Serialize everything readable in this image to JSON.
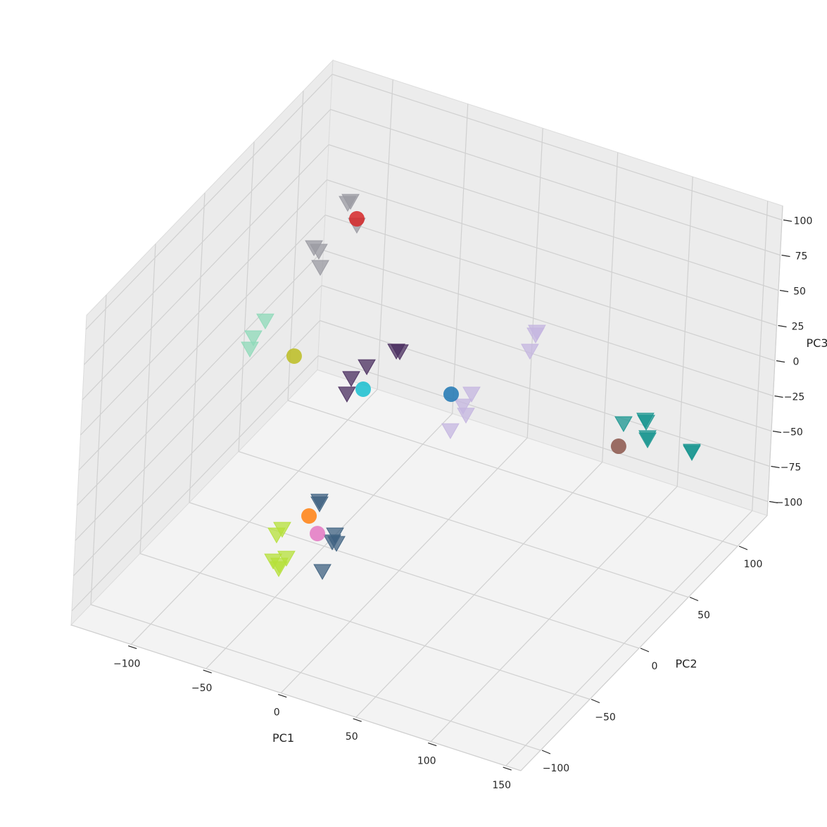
{
  "chart_data": {
    "type": "scatter3d",
    "xlabel": "PC1",
    "ylabel": "PC2",
    "zlabel": "PC3",
    "xlim": [
      -140,
      160
    ],
    "ylim": [
      -120,
      130
    ],
    "zlim": [
      -110,
      110
    ],
    "xticks": [
      {
        "value": -100,
        "label": "−100"
      },
      {
        "value": -50,
        "label": "−50"
      },
      0,
      50,
      100,
      150
    ],
    "yticks": [
      {
        "value": -100,
        "label": "−100"
      },
      {
        "value": -50,
        "label": "−50"
      },
      0,
      50,
      100
    ],
    "zticks": [
      {
        "value": -100,
        "label": "−100"
      },
      {
        "value": -75,
        "label": "−75"
      },
      {
        "value": -50,
        "label": "−50"
      },
      {
        "value": -25,
        "label": "−25"
      },
      0,
      25,
      50,
      75,
      100
    ],
    "grid": true,
    "series": [
      {
        "color": "#9a9aa2",
        "marker": "v",
        "x": [
          -68.6,
          -70.4,
          -63.7,
          -91.1,
          -87.8,
          -86.3
        ],
        "y": [
          40,
          40,
          40,
          40,
          40,
          40
        ],
        "z": [
          99.6,
          97.5,
          84.3,
          58.9,
          57.5,
          46.5
        ]
      },
      {
        "color": "#8ed9b8",
        "marker": "v",
        "x": [
          -96.1,
          -103.4,
          -105.3
        ],
        "y": [
          0,
          0,
          0
        ],
        "z": [
          34.1,
          19.6,
          11.0
        ]
      },
      {
        "color": "#4a2d5f",
        "marker": "v",
        "x": [
          -27.5,
          -25.2,
          -46.4,
          -56.2,
          -58.5
        ],
        "y": [
          30,
          30,
          30,
          30,
          30
        ],
        "z": [
          14.6,
          14.9,
          -3.0,
          -14.8,
          -26.6
        ]
      },
      {
        "color": "#c4b5e0",
        "marker": "v",
        "x": [
          45.8,
          45.0,
          41.8,
          4.9,
          -0.3,
          1.9,
          -7.8
        ],
        "y": [
          60,
          60,
          60,
          60,
          60,
          60,
          60
        ],
        "z": [
          31.6,
          29.3,
          16.7,
          -26.5,
          -36.8,
          -42.5,
          -56.9
        ]
      },
      {
        "color": "#1a9690",
        "marker": "v",
        "x": [
          81.1,
          95.3,
          95.9,
          97.3,
          97.4,
          126.8,
          126.9
        ],
        "y": [
          100,
          100,
          100,
          100,
          100,
          100,
          100
        ],
        "z": [
          -50.2,
          -42.8,
          -44.1,
          -54.6,
          -56.1,
          -54.0,
          -54.9
        ]
      },
      {
        "color": "#3d6080",
        "marker": "v",
        "x": [
          -17.8,
          -17.7,
          -6.5,
          -8.1,
          -5.3,
          -13.6
        ],
        "y": [
          -60,
          -60,
          -60,
          -60,
          -60,
          -60
        ],
        "z": [
          -23.4,
          -25.3,
          -43.5,
          -49.0,
          -49.1,
          -71.9
        ]
      },
      {
        "color": "#b5e03a",
        "marker": "v",
        "x": [
          -29.1,
          -32.6,
          -34.0,
          -25.4,
          -29.8,
          -30.1
        ],
        "y": [
          -80,
          -80,
          -80,
          -80,
          -80,
          -80
        ],
        "z": [
          -32.8,
          -38.0,
          -57.0,
          -52.0,
          -58.5,
          -61.1
        ]
      },
      {
        "color": "#d62728",
        "marker": "o",
        "x": [
          -63.9
        ],
        "y": [
          40
        ],
        "z": [
          88.8
        ]
      },
      {
        "color": "#bcbd22",
        "marker": "o",
        "x": [
          -76.0
        ],
        "y": [
          0
        ],
        "z": [
          16.1
        ]
      },
      {
        "color": "#17becf",
        "marker": "o",
        "x": [
          -48.0
        ],
        "y": [
          30
        ],
        "z": [
          -19.5
        ]
      },
      {
        "color": "#1f77b4",
        "marker": "o",
        "x": [
          -8.5
        ],
        "y": [
          60
        ],
        "z": [
          -31.2
        ]
      },
      {
        "color": "#8c564b",
        "marker": "o",
        "x": [
          78.6
        ],
        "y": [
          100
        ],
        "z": [
          -67.1
        ]
      },
      {
        "color": "#ff7f0e",
        "marker": "o",
        "x": [
          -24.2
        ],
        "y": [
          -60
        ],
        "z": [
          -36.1
        ]
      },
      {
        "color": "#e377c2",
        "marker": "o",
        "x": [
          -18.1
        ],
        "y": [
          -60
        ],
        "z": [
          -46.5
        ]
      }
    ]
  }
}
